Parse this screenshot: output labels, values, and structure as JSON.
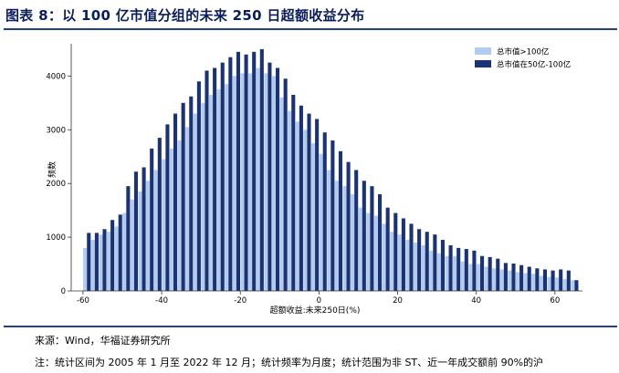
{
  "header": {
    "title": "图表 8：以 100 亿市值分组的未来 250 日超额收益分布"
  },
  "footer": {
    "source": "来源：Wind，华福证券研究所",
    "note": "注：统计区间为 2005 年 1 月至 2022 年 12 月；统计频率为月度；统计范围为非 ST、近一年成交额前 90%的沪"
  },
  "chart_data": {
    "type": "bar",
    "xlabel": "超额收益:未来250日(%)",
    "ylabel": "频数",
    "xlim": [
      -63,
      67
    ],
    "ylim": [
      0,
      4600
    ],
    "xticks": [
      -60,
      -40,
      -20,
      0,
      20,
      40,
      60
    ],
    "yticks": [
      0,
      1000,
      2000,
      3000,
      4000
    ],
    "legend_position": "top-right",
    "colors": {
      "series_light": "#b3cbee",
      "series_dark": "#1b3273",
      "axis": "#333333"
    },
    "x": [
      -59,
      -57,
      -55,
      -53,
      -51,
      -49,
      -47,
      -45,
      -43,
      -41,
      -39,
      -37,
      -35,
      -33,
      -31,
      -29,
      -27,
      -25,
      -23,
      -21,
      -19,
      -17,
      -15,
      -13,
      -11,
      -9,
      -7,
      -5,
      -3,
      -1,
      1,
      3,
      5,
      7,
      9,
      11,
      13,
      15,
      17,
      19,
      21,
      23,
      25,
      27,
      29,
      31,
      33,
      35,
      37,
      39,
      41,
      43,
      45,
      47,
      49,
      51,
      53,
      55,
      57,
      59,
      61,
      63,
      65
    ],
    "series": [
      {
        "name": "总市值>100亿",
        "values": [
          800,
          950,
          1050,
          1100,
          1200,
          1450,
          1700,
          1850,
          2050,
          2250,
          2450,
          2650,
          2800,
          3050,
          3300,
          3500,
          3650,
          3750,
          3850,
          4000,
          4050,
          4050,
          4150,
          4050,
          4000,
          3600,
          3350,
          3150,
          3000,
          2750,
          2550,
          2250,
          2050,
          1950,
          1800,
          1550,
          1450,
          1400,
          1250,
          1100,
          1050,
          950,
          900,
          850,
          750,
          700,
          650,
          650,
          550,
          500,
          500,
          450,
          420,
          400,
          380,
          350,
          330,
          320,
          280,
          260,
          250,
          220,
          200
        ]
      },
      {
        "name": "总市值在50亿-100亿",
        "values": [
          1080,
          1080,
          1150,
          1320,
          1420,
          1950,
          2220,
          2300,
          2650,
          2850,
          3100,
          3300,
          3500,
          3620,
          3900,
          4100,
          4150,
          4250,
          4350,
          4450,
          4400,
          4450,
          4500,
          4250,
          4150,
          3950,
          3650,
          3450,
          3300,
          3200,
          2950,
          2800,
          2600,
          2400,
          2250,
          2050,
          1950,
          1800,
          1550,
          1450,
          1350,
          1250,
          1150,
          1100,
          1050,
          950,
          850,
          800,
          780,
          750,
          650,
          630,
          600,
          520,
          510,
          480,
          450,
          420,
          400,
          380,
          400,
          380,
          200
        ]
      }
    ]
  }
}
